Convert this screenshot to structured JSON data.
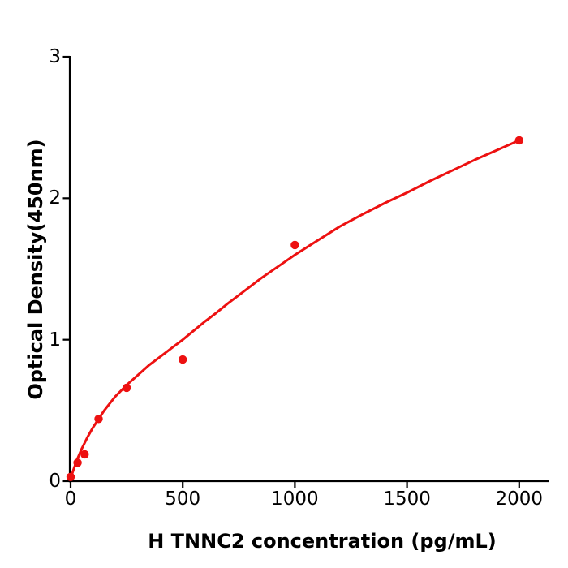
{
  "figure": {
    "background": "#ffffff",
    "axis_color": "#000000",
    "text_color": "#000000"
  },
  "chart_data": {
    "type": "scatter",
    "title": "",
    "xlabel": "H  TNNC2 concentration (pg/mL)",
    "ylabel": "Optical Density(450nm)",
    "x_ticks": [
      0,
      500,
      1000,
      1500,
      2000
    ],
    "y_ticks": [
      0,
      1,
      2,
      3
    ],
    "xlim": [
      0,
      2135
    ],
    "ylim": [
      0,
      3
    ],
    "grid": false,
    "legend": null,
    "series": [
      {
        "name": "standard-curve-fit",
        "type": "line",
        "color": "#ed1111",
        "stroke_width": 3,
        "points": [
          [
            0,
            0.02
          ],
          [
            15,
            0.09
          ],
          [
            31,
            0.16
          ],
          [
            50,
            0.23
          ],
          [
            75,
            0.31
          ],
          [
            100,
            0.38
          ],
          [
            125,
            0.44
          ],
          [
            150,
            0.5
          ],
          [
            175,
            0.55
          ],
          [
            200,
            0.6
          ],
          [
            250,
            0.68
          ],
          [
            300,
            0.75
          ],
          [
            350,
            0.82
          ],
          [
            400,
            0.88
          ],
          [
            450,
            0.94
          ],
          [
            500,
            1.0
          ],
          [
            550,
            1.065
          ],
          [
            600,
            1.13
          ],
          [
            650,
            1.19
          ],
          [
            700,
            1.255
          ],
          [
            750,
            1.315
          ],
          [
            800,
            1.375
          ],
          [
            850,
            1.435
          ],
          [
            900,
            1.49
          ],
          [
            950,
            1.545
          ],
          [
            1000,
            1.6
          ],
          [
            1100,
            1.7
          ],
          [
            1200,
            1.8
          ],
          [
            1300,
            1.885
          ],
          [
            1400,
            1.965
          ],
          [
            1500,
            2.04
          ],
          [
            1600,
            2.12
          ],
          [
            1700,
            2.195
          ],
          [
            1800,
            2.27
          ],
          [
            1900,
            2.34
          ],
          [
            2000,
            2.41
          ]
        ]
      },
      {
        "name": "standard-data-points",
        "type": "scatter",
        "color": "#ed1111",
        "marker_radius": 5.2,
        "points": [
          [
            0,
            0.03
          ],
          [
            31.25,
            0.13
          ],
          [
            62.5,
            0.19
          ],
          [
            125,
            0.44
          ],
          [
            250,
            0.66
          ],
          [
            500,
            0.86
          ],
          [
            1000,
            1.67
          ],
          [
            2000,
            2.41
          ]
        ]
      }
    ]
  }
}
